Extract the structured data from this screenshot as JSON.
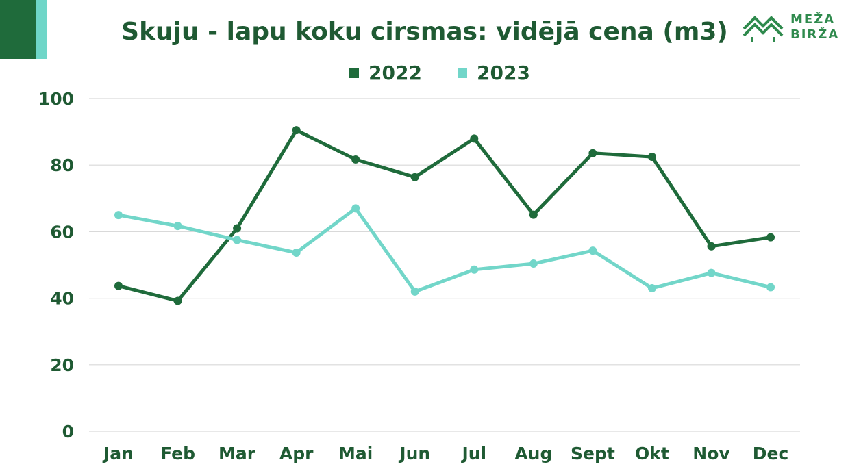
{
  "title": "Skuju - lapu koku cirsmas:  vidējā cena (m3)",
  "logo": {
    "line1": "MEŽA",
    "line2": "BIRŽA",
    "icon": "forest-mountains-icon"
  },
  "colors": {
    "series_2022": "#1f6b3b",
    "series_2023": "#72d6c9",
    "text": "#1f5a33",
    "grid": "#d9d9d9"
  },
  "chart_data": {
    "type": "line",
    "title": "Skuju - lapu koku cirsmas:  vidējā cena (m3)",
    "xlabel": "",
    "ylabel": "",
    "ylim": [
      0,
      100
    ],
    "yticks": [
      "0",
      "20",
      "40",
      "60",
      "80",
      "100"
    ],
    "grid": true,
    "legend": "top-center",
    "categories": [
      "Jan",
      "Feb",
      "Mar",
      "Apr",
      "Mai",
      "Jun",
      "Jul",
      "Aug",
      "Sept",
      "Okt",
      "Nov",
      "Dec"
    ],
    "series": [
      {
        "name": "2022",
        "values": [
          43.7,
          39.2,
          61.0,
          90.5,
          81.7,
          76.4,
          88.0,
          65.1,
          83.6,
          82.5,
          55.6,
          58.3
        ]
      },
      {
        "name": "2023",
        "values": [
          65.0,
          61.7,
          57.5,
          53.7,
          67.0,
          42.0,
          48.6,
          50.4,
          54.3,
          43.0,
          47.6,
          43.3
        ]
      }
    ]
  }
}
